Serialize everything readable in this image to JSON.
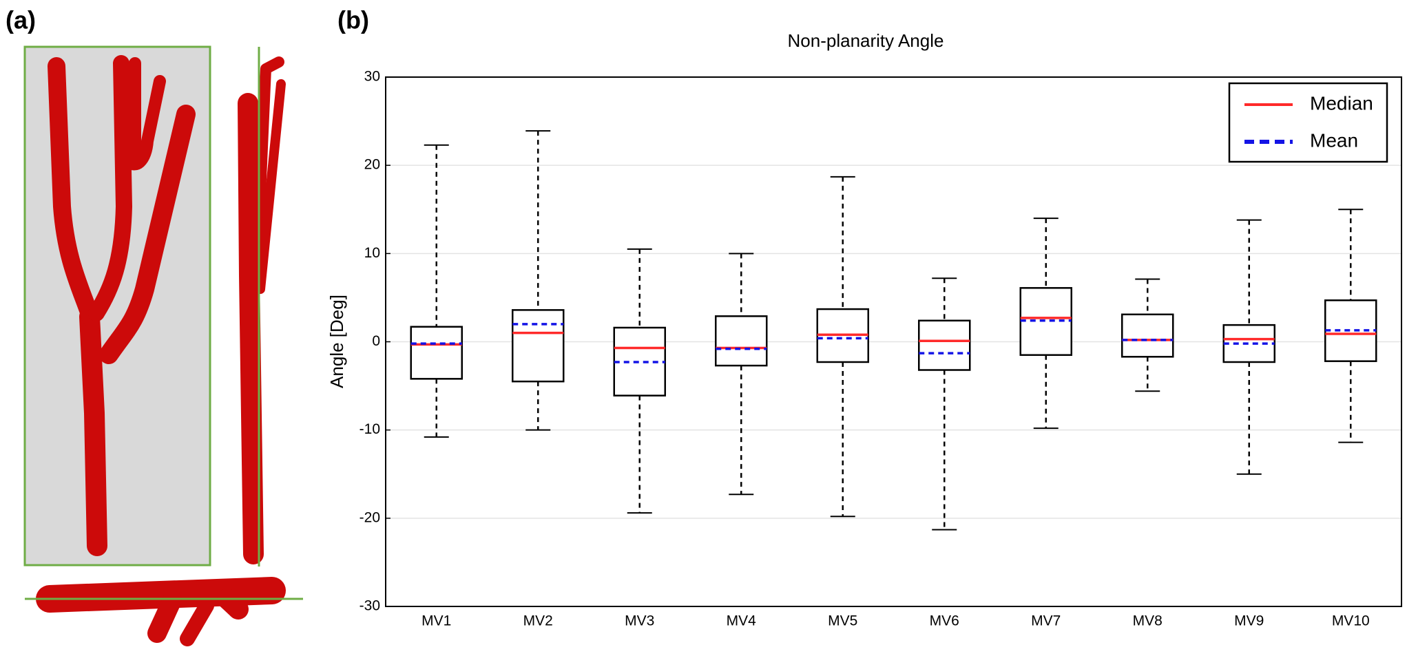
{
  "panel_labels": [
    "(a)",
    "(b)"
  ],
  "chart_data": {
    "type": "box",
    "title": "Non-planarity Angle",
    "y_label": "Angle [Deg]",
    "categories": [
      "MV1",
      "MV2",
      "MV3",
      "MV4",
      "MV5",
      "MV6",
      "MV7",
      "MV8",
      "MV9",
      "MV10"
    ],
    "boxes": [
      {
        "whislo": -10.8,
        "q1": -4.2,
        "med": -0.3,
        "mean": -0.2,
        "q3": 1.7,
        "whishi": 22.3
      },
      {
        "whislo": -10.0,
        "q1": -4.5,
        "med": 1.0,
        "mean": 2.0,
        "q3": 3.6,
        "whishi": 23.9
      },
      {
        "whislo": -19.4,
        "q1": -6.1,
        "med": -0.7,
        "mean": -2.3,
        "q3": 1.6,
        "whishi": 10.5
      },
      {
        "whislo": -17.3,
        "q1": -2.7,
        "med": -0.7,
        "mean": -0.8,
        "q3": 2.9,
        "whishi": 10.0
      },
      {
        "whislo": -19.8,
        "q1": -2.3,
        "med": 0.8,
        "mean": 0.4,
        "q3": 3.7,
        "whishi": 18.7
      },
      {
        "whislo": -21.3,
        "q1": -3.2,
        "med": 0.1,
        "mean": -1.3,
        "q3": 2.4,
        "whishi": 7.2
      },
      {
        "whislo": -9.8,
        "q1": -1.5,
        "med": 2.7,
        "mean": 2.4,
        "q3": 6.1,
        "whishi": 14.0
      },
      {
        "whislo": -5.6,
        "q1": -1.7,
        "med": 0.2,
        "mean": 0.2,
        "q3": 3.1,
        "whishi": 7.1
      },
      {
        "whislo": -15.0,
        "q1": -2.3,
        "med": 0.3,
        "mean": -0.2,
        "q3": 1.9,
        "whishi": 13.8
      },
      {
        "whislo": -11.4,
        "q1": -2.2,
        "med": 0.9,
        "mean": 1.3,
        "q3": 4.7,
        "whishi": 15.0
      }
    ],
    "median_color": "#ff2a2a",
    "mean_color": "#1414e6",
    "legend": {
      "position": "upper right",
      "entries": [
        "Median",
        "Mean"
      ]
    },
    "ylim": [
      -30,
      30
    ],
    "yticks": [
      -30,
      -20,
      -10,
      0,
      10,
      20,
      30
    ],
    "xlim": [
      0.5,
      10.5
    ],
    "grid": true
  }
}
